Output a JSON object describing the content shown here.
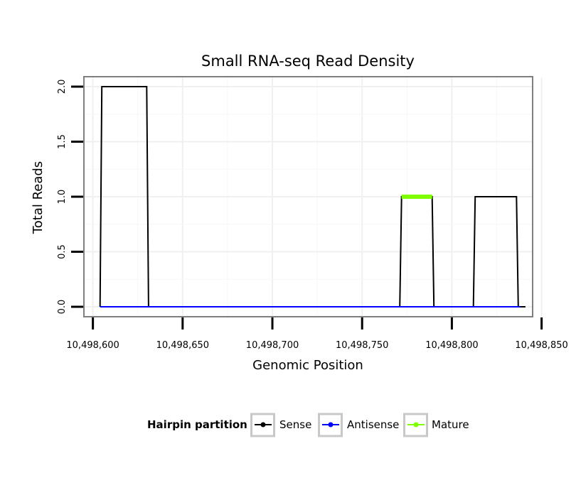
{
  "chart_data": {
    "type": "line",
    "title": "Small RNA-seq Read Density",
    "xlabel": "Genomic Position",
    "ylabel": "Total Reads",
    "xlim": [
      10498595,
      10498845
    ],
    "ylim": [
      -0.09,
      2.09
    ],
    "x_ticks": [
      10498600,
      10498650,
      10498700,
      10498750,
      10498800,
      10498850
    ],
    "x_tick_labels": [
      "10,498,600",
      "10,498,650",
      "10,498,700",
      "10,498,750",
      "10,498,800",
      "10,498,850"
    ],
    "y_ticks": [
      0,
      0.5,
      1,
      1.5,
      2
    ],
    "y_tick_labels": [
      "0.0",
      "0.5",
      "1.0",
      "1.5",
      "2.0"
    ],
    "grid": true,
    "legend_position": "bottom",
    "legend_title": "Hairpin partition",
    "series": [
      {
        "name": "Sense",
        "color": "#000000",
        "x": [
          10498604,
          10498605,
          10498630,
          10498631,
          10498771,
          10498772,
          10498789,
          10498790,
          10498812,
          10498813,
          10498836,
          10498837,
          10498841
        ],
        "values": [
          0,
          2,
          2,
          0,
          0,
          1,
          1,
          0,
          0,
          1,
          1,
          0,
          0
        ]
      },
      {
        "name": "Antisense",
        "color": "#0000ff",
        "x": [
          10498604,
          10498838
        ],
        "values": [
          0,
          0
        ]
      },
      {
        "name": "Mature",
        "color": "#7fff00",
        "x": [
          10498772,
          10498789
        ],
        "values": [
          1,
          1
        ]
      }
    ]
  }
}
